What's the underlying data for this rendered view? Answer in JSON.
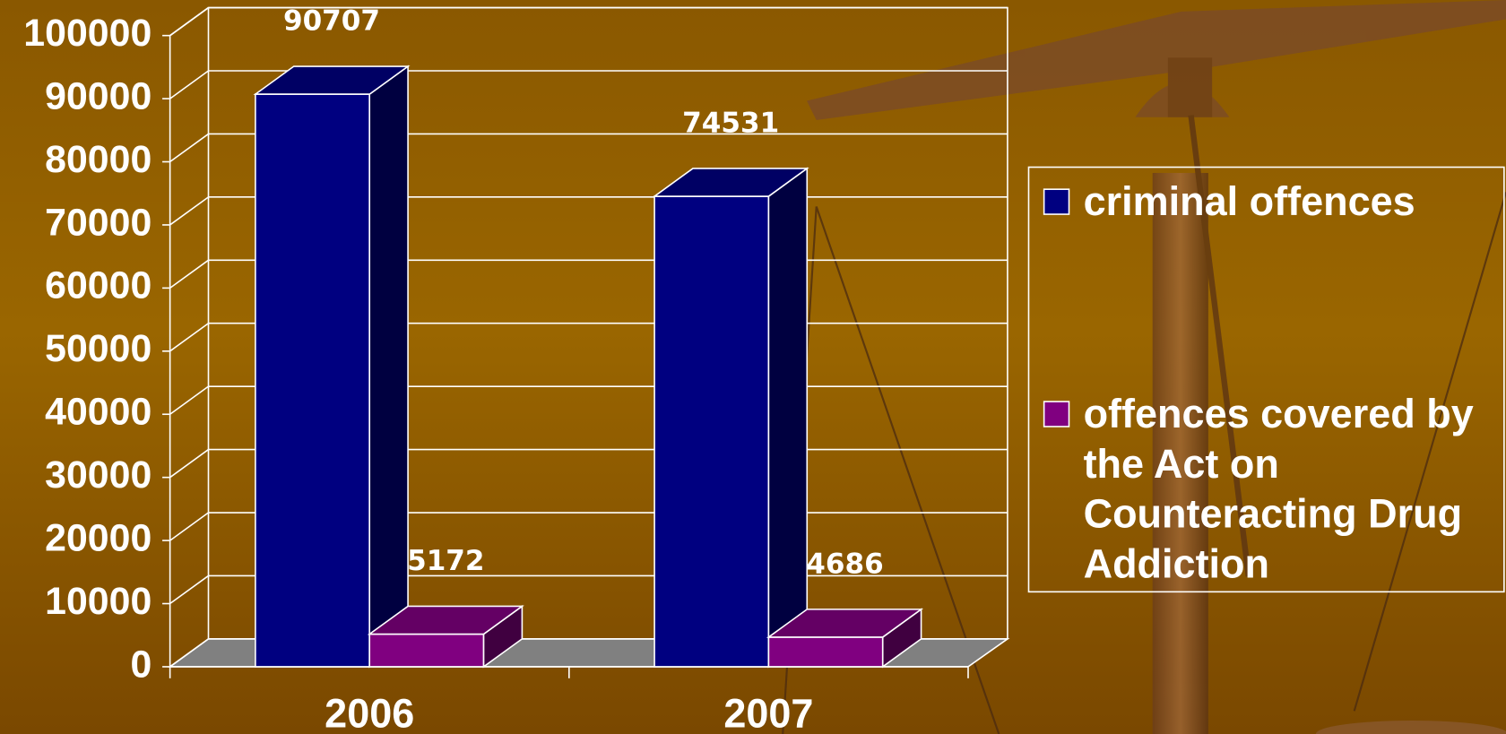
{
  "chart_data": {
    "type": "bar3d",
    "categories": [
      "2006",
      "2007"
    ],
    "series": [
      {
        "name": "criminal offences",
        "color": "#000080",
        "values": [
          90707,
          74531
        ]
      },
      {
        "name": "offences covered by the Act on Counteracting Drug Addiction",
        "color": "#800080",
        "values": [
          5172,
          4686
        ]
      }
    ],
    "ylim": [
      0,
      100000
    ],
    "yticks": [
      0,
      10000,
      20000,
      30000,
      40000,
      50000,
      60000,
      70000,
      80000,
      90000,
      100000
    ],
    "grid": true,
    "legend": "right"
  }
}
